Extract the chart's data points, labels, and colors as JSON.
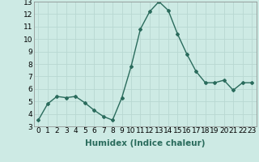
{
  "x": [
    0,
    1,
    2,
    3,
    4,
    5,
    6,
    7,
    8,
    9,
    10,
    11,
    12,
    13,
    14,
    15,
    16,
    17,
    18,
    19,
    20,
    21,
    22,
    23
  ],
  "y": [
    3.5,
    4.8,
    5.4,
    5.3,
    5.4,
    4.9,
    4.3,
    3.8,
    3.5,
    5.3,
    7.8,
    10.8,
    12.2,
    13.0,
    12.3,
    10.4,
    8.8,
    7.4,
    6.5,
    6.5,
    6.7,
    5.9,
    6.5,
    6.5
  ],
  "title": "",
  "xlabel": "Humidex (Indice chaleur)",
  "ylabel": "",
  "ylim": [
    3,
    13
  ],
  "xlim": [
    -0.5,
    23.5
  ],
  "yticks": [
    3,
    4,
    5,
    6,
    7,
    8,
    9,
    10,
    11,
    12,
    13
  ],
  "xtick_labels": [
    "0",
    "1",
    "2",
    "3",
    "4",
    "5",
    "6",
    "7",
    "8",
    "9",
    "10",
    "11",
    "12",
    "13",
    "14",
    "15",
    "16",
    "17",
    "18",
    "19",
    "20",
    "21",
    "22",
    "23"
  ],
  "line_color": "#2a6b5c",
  "bg_color": "#cdeae4",
  "grid_color": "#b8d8d2",
  "marker": "D",
  "marker_size": 2.0,
  "line_width": 1.0,
  "xlabel_fontsize": 7.5,
  "tick_fontsize": 6.5
}
